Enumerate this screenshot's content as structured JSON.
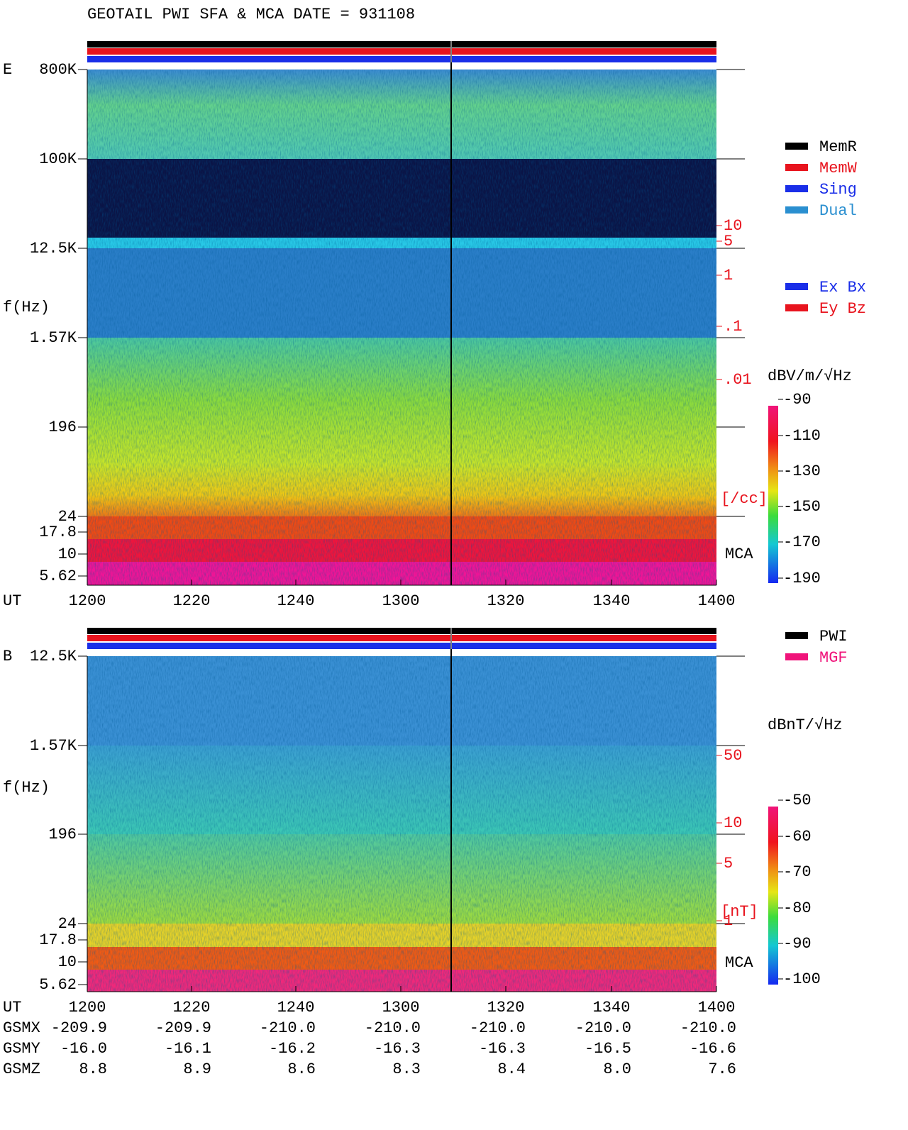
{
  "title": "GEOTAIL  PWI SFA & MCA   DATE = 931108",
  "panels": [
    {
      "label": "E",
      "y_axis_label": "f(Hz)",
      "y_tick_labels": [
        "800K",
        "100K",
        "12.5K",
        "1.57K",
        "196",
        "24",
        "17.8",
        "10",
        "5.62"
      ],
      "density_tick_labels": [
        "10",
        "5",
        "1",
        ".1",
        ".01",
        "[/cc]"
      ],
      "mca_label": "MCA",
      "x_axis_label": "UT",
      "x_tick_labels": [
        "1200",
        "1220",
        "1240",
        "1300",
        "1320",
        "1340",
        "1400"
      ],
      "legend": [
        {
          "name": "MemR",
          "color": "#000000"
        },
        {
          "name": "MemW",
          "color": "#e8141e"
        },
        {
          "name": "Sing",
          "color": "#1a2ee8"
        },
        {
          "name": "Dual",
          "color": "#2a8fd0"
        }
      ],
      "legend_components": [
        {
          "name": "Ex Bx",
          "color": "#1a2ee8"
        },
        {
          "name": "Ey Bz",
          "color": "#e8141e"
        }
      ],
      "colorbar": {
        "label": "dBV/m/√Hz",
        "tick_labels": [
          "-90",
          "-110",
          "-130",
          "-150",
          "-170",
          "-190"
        ]
      }
    },
    {
      "label": "B",
      "y_axis_label": "f(Hz)",
      "y_tick_labels": [
        "12.5K",
        "1.57K",
        "196",
        "24",
        "17.8",
        "10",
        "5.62"
      ],
      "density_tick_labels": [
        "50",
        "10",
        "5",
        "1",
        "[nT]"
      ],
      "mca_label": "MCA",
      "x_axis_label": "UT",
      "x_tick_labels": [
        "1200",
        "1220",
        "1240",
        "1300",
        "1320",
        "1340",
        "1400"
      ],
      "legend": [
        {
          "name": "PWI",
          "color": "#000000"
        },
        {
          "name": "MGF",
          "color": "#f0147a"
        }
      ],
      "colorbar": {
        "label": "dBnT/√Hz",
        "tick_labels": [
          "-50",
          "-60",
          "-70",
          "-80",
          "-90",
          "-100"
        ]
      }
    }
  ],
  "ephemeris": [
    {
      "name": "GSMX",
      "values": [
        "-209.9",
        "-209.9",
        "-210.0",
        "-210.0",
        "-210.0",
        "-210.0",
        "-210.0"
      ]
    },
    {
      "name": "GSMY",
      "values": [
        "-16.0",
        "-16.1",
        "-16.2",
        "-16.3",
        "-16.3",
        "-16.5",
        "-16.6"
      ]
    },
    {
      "name": "GSMZ",
      "values": [
        "8.8",
        "8.9",
        "8.6",
        "8.3",
        "8.4",
        "8.0",
        "7.6"
      ]
    }
  ]
}
